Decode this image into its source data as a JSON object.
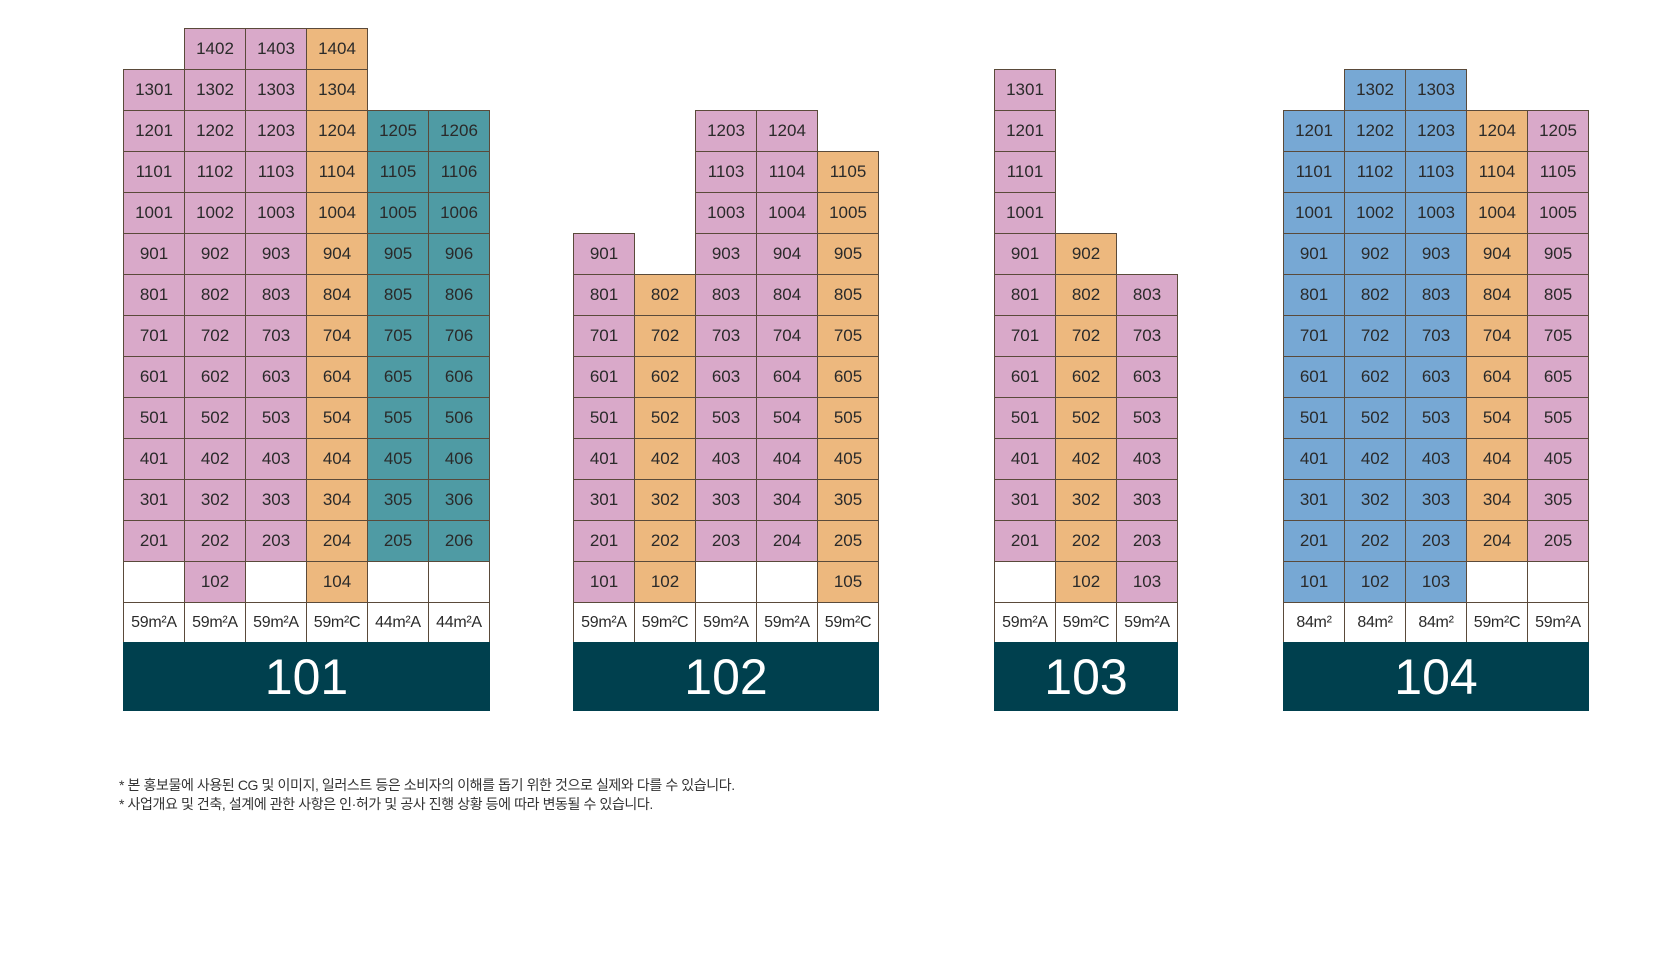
{
  "colors": {
    "pink": "#d9a9c9",
    "orange": "#edb87e",
    "teal": "#4f9ba4",
    "blue": "#77a8d4",
    "building_label_bg": "#00404e",
    "border": "#5a4a3a"
  },
  "legend_note": "",
  "chart_data": {
    "type": "table",
    "buildings": [
      {
        "name": "101",
        "columns": [
          {
            "type": "59m²A",
            "color": "pink",
            "floors": [
              "201",
              "301",
              "401",
              "501",
              "601",
              "701",
              "801",
              "901",
              "1001",
              "1101",
              "1201",
              "1301"
            ]
          },
          {
            "type": "59m²A",
            "color": "pink",
            "floors": [
              "102",
              "202",
              "302",
              "402",
              "502",
              "602",
              "702",
              "802",
              "902",
              "1002",
              "1102",
              "1202",
              "1302",
              "1402"
            ]
          },
          {
            "type": "59m²A",
            "color": "pink",
            "floors": [
              "203",
              "303",
              "403",
              "503",
              "603",
              "703",
              "803",
              "903",
              "1003",
              "1103",
              "1203",
              "1303",
              "1403"
            ]
          },
          {
            "type": "59m²C",
            "color": "orange",
            "floors": [
              "104",
              "204",
              "304",
              "404",
              "504",
              "604",
              "704",
              "804",
              "904",
              "1004",
              "1104",
              "1204",
              "1304",
              "1404"
            ]
          },
          {
            "type": "44m²A",
            "color": "teal",
            "floors": [
              "205",
              "305",
              "405",
              "505",
              "605",
              "705",
              "805",
              "905",
              "1005",
              "1105",
              "1205"
            ]
          },
          {
            "type": "44m²A",
            "color": "teal",
            "floors": [
              "206",
              "306",
              "406",
              "506",
              "606",
              "706",
              "806",
              "906",
              "1006",
              "1106",
              "1206"
            ]
          }
        ]
      },
      {
        "name": "102",
        "columns": [
          {
            "type": "59m²A",
            "color": "pink",
            "floors": [
              "101",
              "201",
              "301",
              "401",
              "501",
              "601",
              "701",
              "801",
              "901"
            ]
          },
          {
            "type": "59m²C",
            "color": "orange",
            "floors": [
              "102",
              "202",
              "302",
              "402",
              "502",
              "602",
              "702",
              "802"
            ]
          },
          {
            "type": "59m²A",
            "color": "pink",
            "floors": [
              "203",
              "303",
              "403",
              "503",
              "603",
              "703",
              "803",
              "903",
              "1003",
              "1103",
              "1203"
            ]
          },
          {
            "type": "59m²A",
            "color": "pink",
            "floors": [
              "204",
              "304",
              "404",
              "504",
              "604",
              "704",
              "804",
              "904",
              "1004",
              "1104",
              "1204"
            ]
          },
          {
            "type": "59m²C",
            "color": "orange",
            "floors": [
              "105",
              "205",
              "305",
              "405",
              "505",
              "605",
              "705",
              "805",
              "905",
              "1005",
              "1105"
            ]
          }
        ]
      },
      {
        "name": "103",
        "columns": [
          {
            "type": "59m²A",
            "color": "pink",
            "floors": [
              "201",
              "301",
              "401",
              "501",
              "601",
              "701",
              "801",
              "901",
              "1001",
              "1101",
              "1201",
              "1301"
            ]
          },
          {
            "type": "59m²C",
            "color": "orange",
            "floors": [
              "102",
              "202",
              "302",
              "402",
              "502",
              "602",
              "702",
              "802",
              "902"
            ]
          },
          {
            "type": "59m²A",
            "color": "pink",
            "floors": [
              "103",
              "203",
              "303",
              "403",
              "503",
              "603",
              "703",
              "803"
            ]
          }
        ]
      },
      {
        "name": "104",
        "columns": [
          {
            "type": "84m²",
            "color": "blue",
            "floors": [
              "101",
              "201",
              "301",
              "401",
              "501",
              "601",
              "701",
              "801",
              "901",
              "1001",
              "1101",
              "1201"
            ]
          },
          {
            "type": "84m²",
            "color": "blue",
            "floors": [
              "102",
              "202",
              "302",
              "402",
              "502",
              "602",
              "702",
              "802",
              "902",
              "1002",
              "1102",
              "1202",
              "1302"
            ]
          },
          {
            "type": "84m²",
            "color": "blue",
            "floors": [
              "103",
              "203",
              "303",
              "403",
              "503",
              "603",
              "703",
              "803",
              "903",
              "1003",
              "1103",
              "1203",
              "1303"
            ]
          },
          {
            "type": "59m²C",
            "color": "orange",
            "floors": [
              "204",
              "304",
              "404",
              "504",
              "604",
              "704",
              "804",
              "904",
              "1004",
              "1104",
              "1204"
            ]
          },
          {
            "type": "59m²A",
            "color": "pink",
            "floors": [
              "205",
              "305",
              "405",
              "505",
              "605",
              "705",
              "805",
              "905",
              "1005",
              "1105",
              "1205"
            ]
          }
        ]
      }
    ]
  },
  "notes": [
    "* 본 홍보물에 사용된 CG 및 이미지, 일러스트 등은 소비자의 이해를 돕기 위한 것으로 실제와 다를 수 있습니다.",
    "* 사업개요 및 건축, 설계에 관한 사항은 인·허가 및 공사 진행 상황 등에 따라 변동될 수 있습니다."
  ]
}
